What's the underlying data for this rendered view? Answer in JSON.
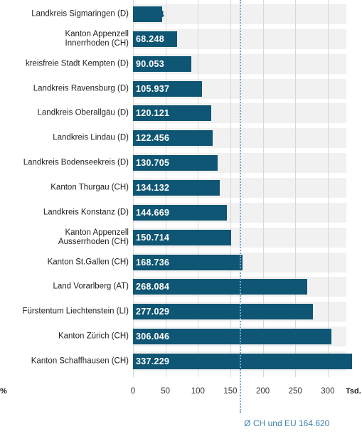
{
  "chart_data": {
    "type": "bar",
    "orientation": "horizontal",
    "categories": [
      "Landkreis Sigmaringen (D)",
      "Kanton Appenzell\nInnerrhoden (CH)",
      "kreisfreie Stadt Kempten (D)",
      "Landkreis Ravensburg (D)",
      "Landkreis Oberallgäu (D)",
      "Landkreis Lindau (D)",
      "Landkreis Bodenseekreis (D)",
      "Kanton Thurgau (CH)",
      "Landkreis Konstanz (D)",
      "Kanton Appenzell\nAusserrhoden (CH)",
      "Kanton St.Gallen (CH)",
      "Land Vorarlberg (AT)",
      "Fürstentum Liechtenstein (LI)",
      "Kanton Zürich (CH)",
      "Kanton Schaffhausen (CH)"
    ],
    "values": [
      45.134,
      68.248,
      90.053,
      105.937,
      120.121,
      122.456,
      130.705,
      134.132,
      144.669,
      150.714,
      168.736,
      268.084,
      277.029,
      306.046,
      337.229
    ],
    "color": "#0e5673",
    "xlim": [
      0,
      330
    ],
    "xticks": [
      0,
      50,
      100,
      150,
      200,
      250,
      300
    ],
    "grid": true,
    "x_unit": "Tsd.",
    "left_label": "%",
    "reference_line": {
      "value": 164.62,
      "label": "Ø CH und EU 164.620"
    }
  }
}
